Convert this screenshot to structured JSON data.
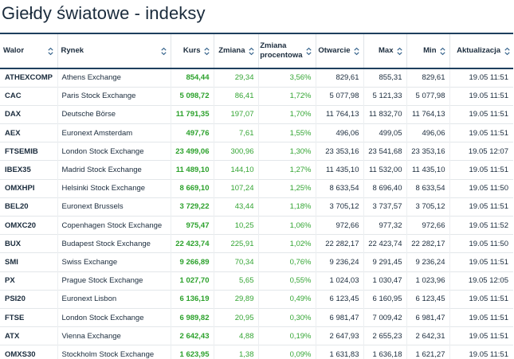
{
  "page": {
    "title": "Giełdy światowe - indeksy"
  },
  "colors": {
    "up": "#2ba12b",
    "header_border": "#1e3f5e",
    "text": "#1a2b3c"
  },
  "table": {
    "headers": {
      "symbol": "Walor",
      "market": "Rynek",
      "price": "Kurs",
      "change": "Zmiana",
      "change_pct_line1": "Zmiana",
      "change_pct_line2": "procentowa",
      "open": "Otwarcie",
      "max": "Max",
      "min": "Min",
      "updated": "Aktualizacja"
    },
    "rows": [
      {
        "symbol": "ATHEXCOMP",
        "market": "Athens Exchange",
        "price": "854,44",
        "change": "29,34",
        "change_pct": "3,56%",
        "open": "829,61",
        "max": "855,31",
        "min": "829,61",
        "updated": "19.05 11:51"
      },
      {
        "symbol": "CAC",
        "market": "Paris Stock Exchange",
        "price": "5 098,72",
        "change": "86,41",
        "change_pct": "1,72%",
        "open": "5 077,98",
        "max": "5 121,33",
        "min": "5 077,98",
        "updated": "19.05 11:51"
      },
      {
        "symbol": "DAX",
        "market": "Deutsche Börse",
        "price": "11 791,35",
        "change": "197,07",
        "change_pct": "1,70%",
        "open": "11 764,13",
        "max": "11 832,70",
        "min": "11 764,13",
        "updated": "19.05 11:51"
      },
      {
        "symbol": "AEX",
        "market": "Euronext Amsterdam",
        "price": "497,76",
        "change": "7,61",
        "change_pct": "1,55%",
        "open": "496,06",
        "max": "499,05",
        "min": "496,06",
        "updated": "19.05 11:51"
      },
      {
        "symbol": "FTSEMIB",
        "market": "London Stock Exchange",
        "price": "23 499,06",
        "change": "300,96",
        "change_pct": "1,30%",
        "open": "23 353,16",
        "max": "23 541,68",
        "min": "23 353,16",
        "updated": "19.05 12:07"
      },
      {
        "symbol": "IBEX35",
        "market": "Madrid Stock Exchange",
        "price": "11 489,10",
        "change": "144,10",
        "change_pct": "1,27%",
        "open": "11 435,10",
        "max": "11 532,00",
        "min": "11 435,10",
        "updated": "19.05 11:51"
      },
      {
        "symbol": "OMXHPI",
        "market": "Helsinki Stock Exchange",
        "price": "8 669,10",
        "change": "107,24",
        "change_pct": "1,25%",
        "open": "8 633,54",
        "max": "8 696,40",
        "min": "8 633,54",
        "updated": "19.05 11:50"
      },
      {
        "symbol": "BEL20",
        "market": "Euronext Brussels",
        "price": "3 729,22",
        "change": "43,44",
        "change_pct": "1,18%",
        "open": "3 705,12",
        "max": "3 737,57",
        "min": "3 705,12",
        "updated": "19.05 11:51"
      },
      {
        "symbol": "OMXC20",
        "market": "Copenhagen Stock Exchange",
        "price": "975,47",
        "change": "10,25",
        "change_pct": "1,06%",
        "open": "972,66",
        "max": "977,32",
        "min": "972,66",
        "updated": "19.05 11:52"
      },
      {
        "symbol": "BUX",
        "market": "Budapest Stock Exchange",
        "price": "22 423,74",
        "change": "225,91",
        "change_pct": "1,02%",
        "open": "22 282,17",
        "max": "22 423,74",
        "min": "22 282,17",
        "updated": "19.05 11:50"
      },
      {
        "symbol": "SMI",
        "market": "Swiss Exchange",
        "price": "9 266,89",
        "change": "70,34",
        "change_pct": "0,76%",
        "open": "9 236,24",
        "max": "9 291,45",
        "min": "9 236,24",
        "updated": "19.05 11:51"
      },
      {
        "symbol": "PX",
        "market": "Prague Stock Exchange",
        "price": "1 027,70",
        "change": "5,65",
        "change_pct": "0,55%",
        "open": "1 024,03",
        "max": "1 030,47",
        "min": "1 023,96",
        "updated": "19.05 12:05"
      },
      {
        "symbol": "PSI20",
        "market": "Euronext Lisbon",
        "price": "6 136,19",
        "change": "29,89",
        "change_pct": "0,49%",
        "open": "6 123,45",
        "max": "6 160,95",
        "min": "6 123,45",
        "updated": "19.05 11:51"
      },
      {
        "symbol": "FTSE",
        "market": "London Stock Exchange",
        "price": "6 989,82",
        "change": "20,95",
        "change_pct": "0,30%",
        "open": "6 981,47",
        "max": "7 009,42",
        "min": "6 981,47",
        "updated": "19.05 11:51"
      },
      {
        "symbol": "ATX",
        "market": "Vienna Exchange",
        "price": "2 642,43",
        "change": "4,88",
        "change_pct": "0,19%",
        "open": "2 647,93",
        "max": "2 655,23",
        "min": "2 642,31",
        "updated": "19.05 11:51"
      },
      {
        "symbol": "OMXS30",
        "market": "Stockholm Stock Exchange",
        "price": "1 623,95",
        "change": "1,38",
        "change_pct": "0,09%",
        "open": "1 631,83",
        "max": "1 636,18",
        "min": "1 621,27",
        "updated": "19.05 11:51"
      }
    ]
  }
}
